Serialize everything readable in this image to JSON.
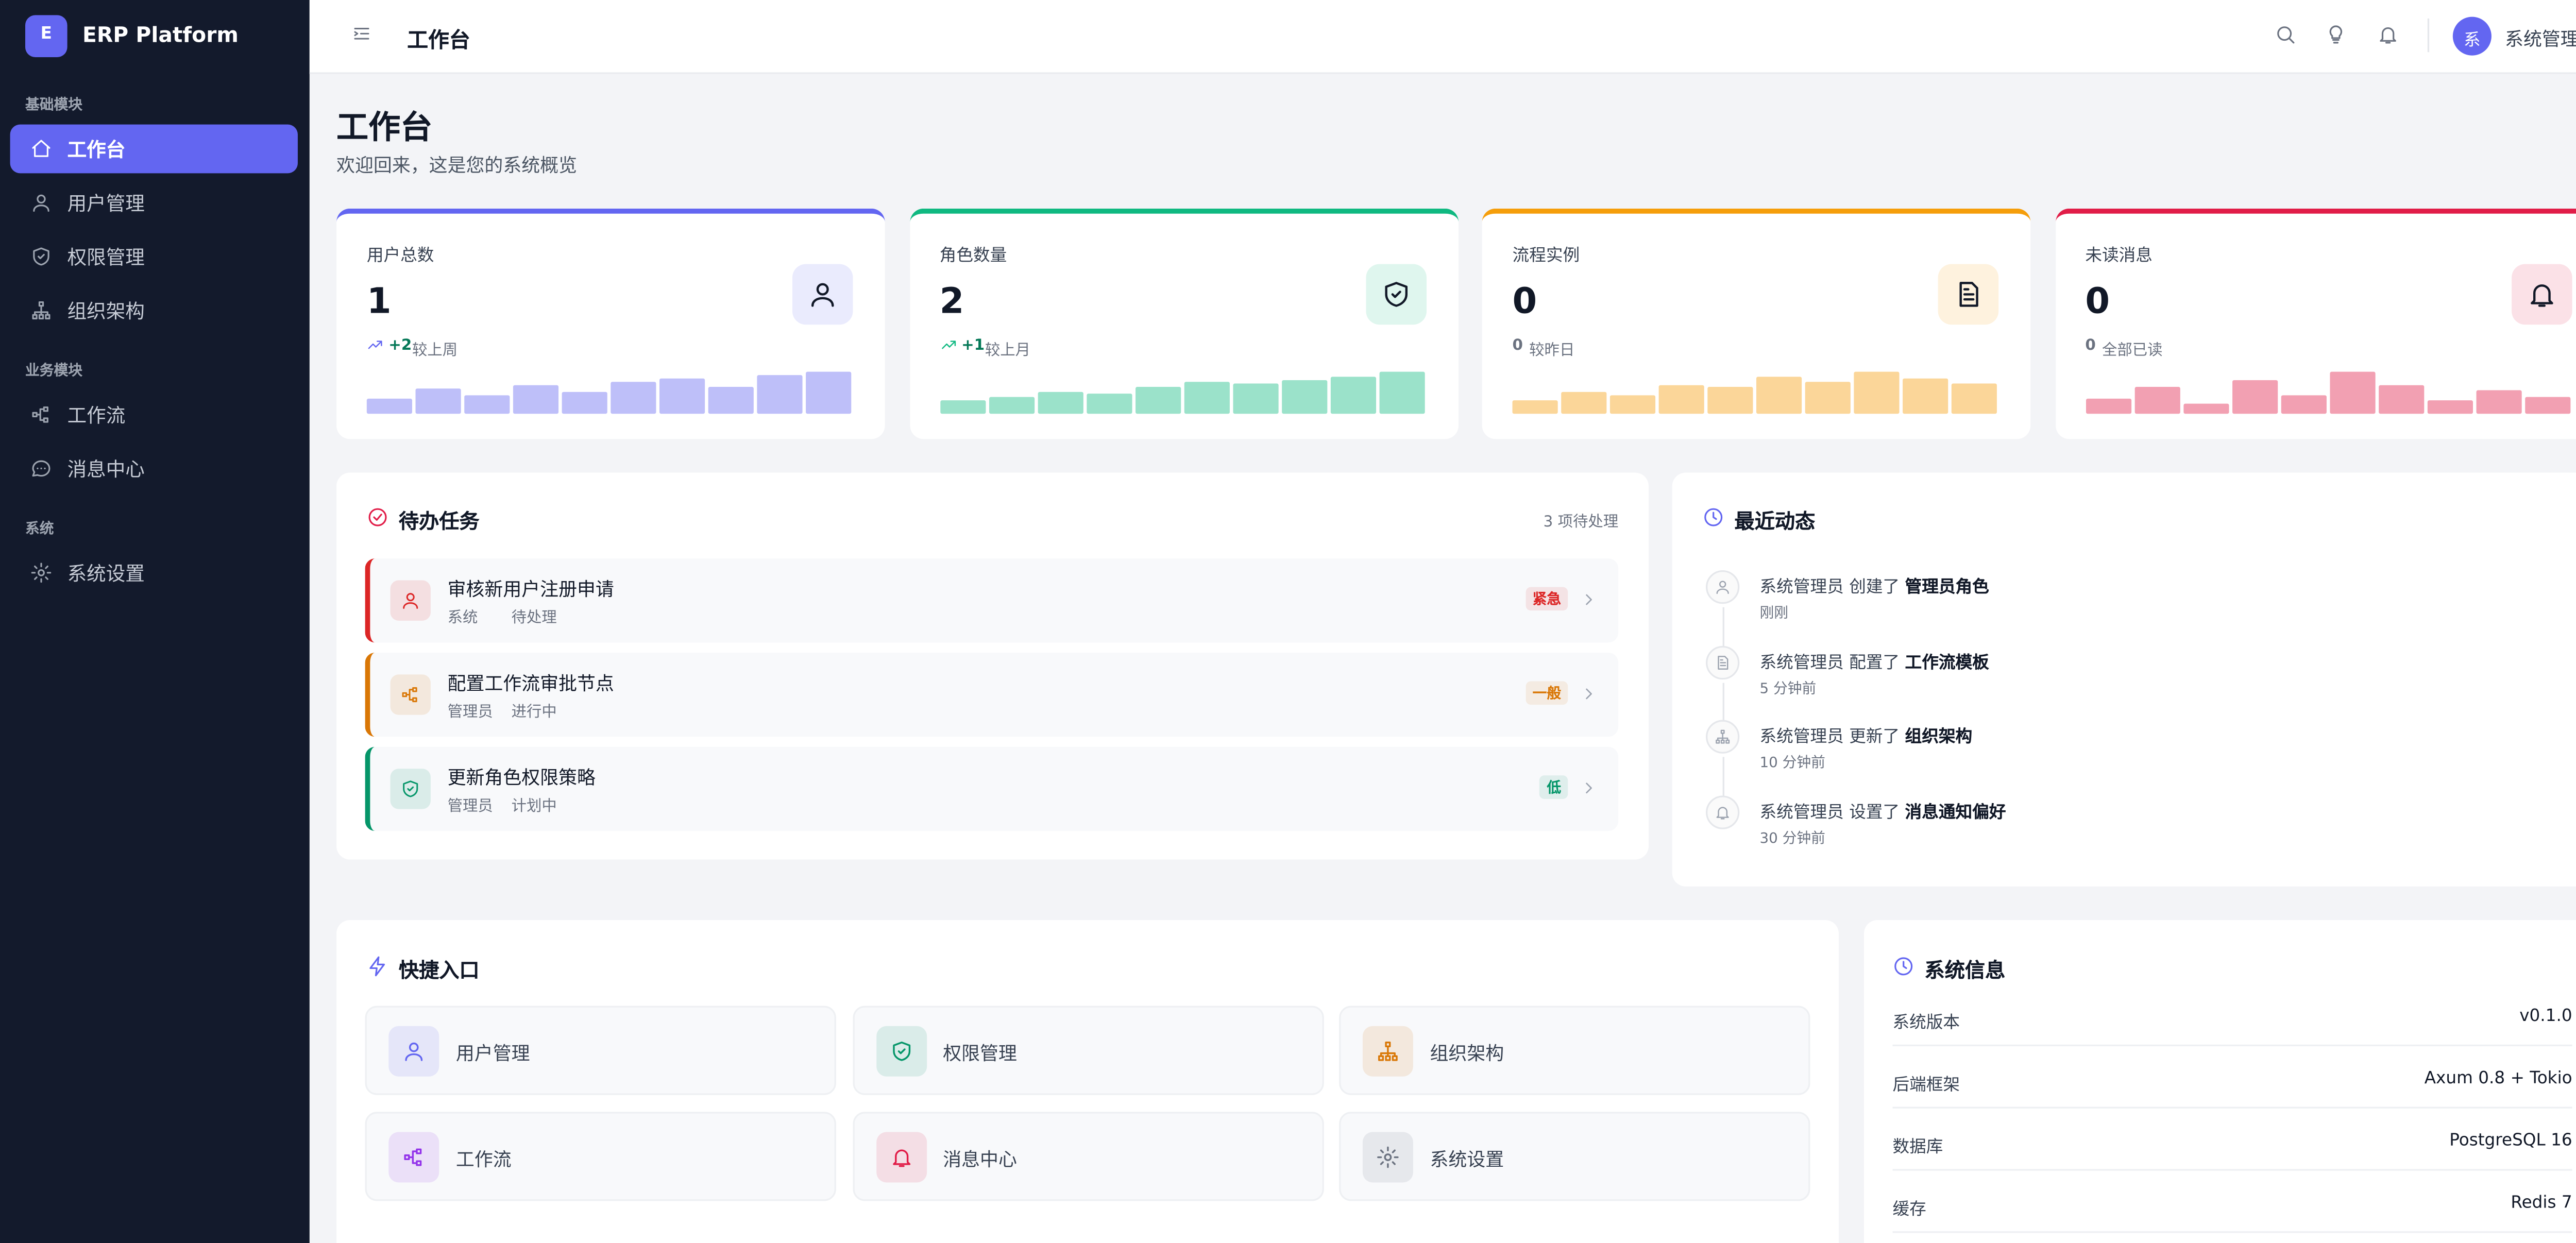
{
  "sidebar": {
    "logo": "E",
    "brand": "ERP Platform",
    "groups": [
      {
        "title": "基础模块",
        "items": [
          "工作台",
          "用户管理",
          "权限管理",
          "组织架构"
        ]
      },
      {
        "title": "业务模块",
        "items": [
          "工作流",
          "消息中心"
        ]
      },
      {
        "title": "系统",
        "items": [
          "系统设置"
        ]
      }
    ]
  },
  "topbar": {
    "title": "工作台",
    "avatar": "系",
    "user": "系统管理员"
  },
  "page": {
    "title": "工作台",
    "subtitle": "欢迎回来，这是您的系统概览"
  },
  "cards": [
    {
      "label": "用户总数",
      "value": 1,
      "delta": "+2",
      "note": "较上周",
      "color": "#6366f1",
      "trend": [
        9,
        15,
        11,
        17,
        13,
        19,
        21,
        16,
        23,
        25
      ]
    },
    {
      "label": "角色数量",
      "value": 2,
      "delta": "+1",
      "note": "较上月",
      "color": "#10b981",
      "trend": [
        8,
        10,
        13,
        12,
        16,
        19,
        18,
        20,
        22,
        25
      ]
    },
    {
      "label": "流程实例",
      "value": 0,
      "delta": "0",
      "note": "较昨日",
      "color": "#f59e0b",
      "trend": [
        8,
        13,
        11,
        17,
        16,
        22,
        19,
        25,
        21,
        18
      ]
    },
    {
      "label": "未读消息",
      "value": 0,
      "delta": "0",
      "note": "全部已读",
      "color": "#e11d48",
      "trend": [
        9,
        16,
        6,
        20,
        11,
        25,
        17,
        8,
        14,
        10
      ]
    }
  ],
  "todo": {
    "title": "待办任务",
    "count": "3 项待处理",
    "items": [
      {
        "title": "审核新用户注册申请",
        "source": "系统",
        "status": "待处理",
        "priority": "紧急"
      },
      {
        "title": "配置工作流审批节点",
        "source": "管理员",
        "status": "进行中",
        "priority": "一般"
      },
      {
        "title": "更新角色权限策略",
        "source": "管理员",
        "status": "计划中",
        "priority": "低"
      }
    ]
  },
  "activity": {
    "title": "最近动态",
    "items": [
      {
        "actor": "系统管理员",
        "action": "创建了",
        "target": "管理员角色",
        "time": "刚刚"
      },
      {
        "actor": "系统管理员",
        "action": "配置了",
        "target": "工作流模板",
        "time": "5 分钟前"
      },
      {
        "actor": "系统管理员",
        "action": "更新了",
        "target": "组织架构",
        "time": "10 分钟前"
      },
      {
        "actor": "系统管理员",
        "action": "设置了",
        "target": "消息通知偏好",
        "time": "30 分钟前"
      }
    ]
  },
  "shortcuts": {
    "title": "快捷入口",
    "items": [
      "用户管理",
      "权限管理",
      "组织架构",
      "工作流",
      "消息中心",
      "系统设置"
    ]
  },
  "sysinfo": {
    "title": "系统信息",
    "rows": [
      [
        "系统版本",
        "v0.1.0"
      ],
      [
        "后端框架",
        "Axum 0.8 + Tokio"
      ],
      [
        "数据库",
        "PostgreSQL 16"
      ],
      [
        "缓存",
        "Redis 7"
      ]
    ]
  }
}
